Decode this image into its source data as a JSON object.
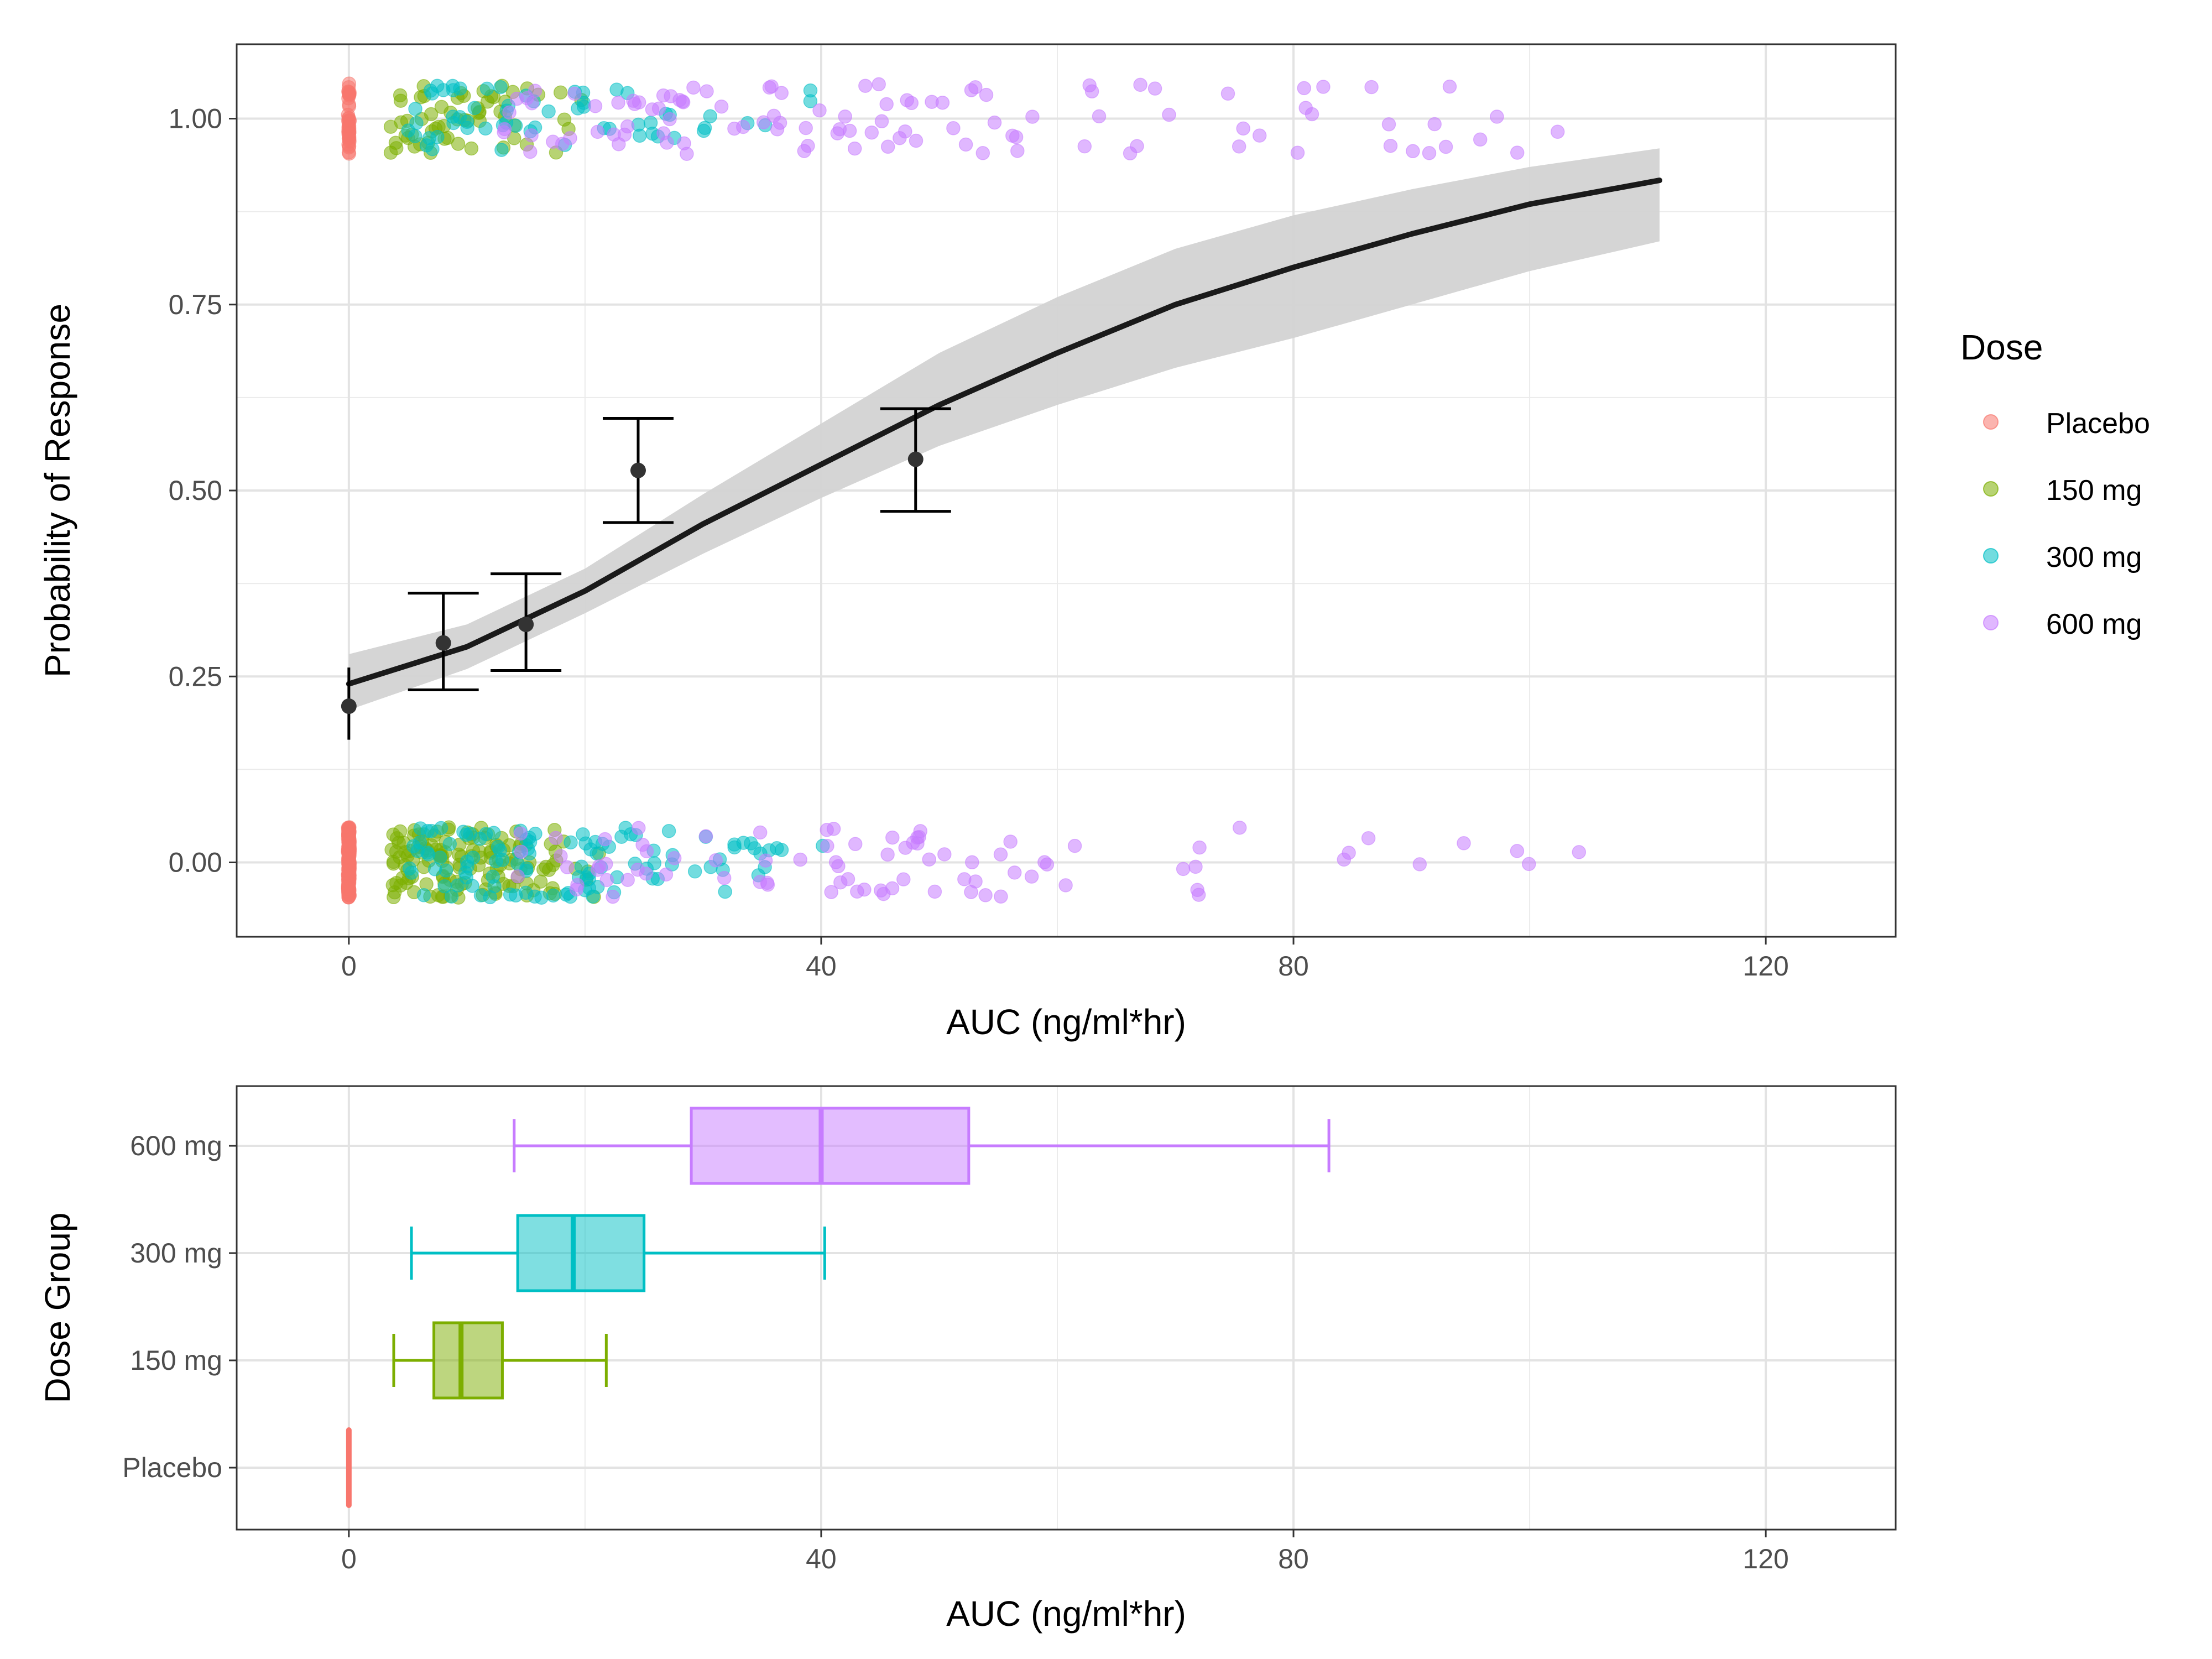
{
  "chart_data": [
    {
      "type": "scatter",
      "title": "",
      "xlabel": "AUC (ng/ml*hr)",
      "ylabel": "Probability of Response",
      "xlim": [
        -9.5,
        131
      ],
      "ylim": [
        -0.1,
        1.1
      ],
      "x_ticks": [
        0,
        40,
        80,
        120
      ],
      "x_tick_labels": [
        "0",
        "40",
        "80",
        "120"
      ],
      "y_ticks": [
        0,
        0.25,
        0.5,
        0.75,
        1
      ],
      "y_tick_labels": [
        "0.00",
        "0.25",
        "0.50",
        "0.75",
        "1.00"
      ],
      "grid": true,
      "legend": {
        "title": "Dose",
        "placement": "right",
        "entries": [
          {
            "label": "Placebo",
            "color": "#F8766D"
          },
          {
            "label": "150 mg",
            "color": "#7CAE00"
          },
          {
            "label": "300 mg",
            "color": "#00BFC4"
          },
          {
            "label": "600 mg",
            "color": "#C77CFF"
          }
        ]
      },
      "series": [
        {
          "name": "Placebo",
          "color": "#F8766D",
          "auc_range": [
            0,
            0
          ],
          "n_responders": 40,
          "n_nonresponders": 150
        },
        {
          "name": "150 mg",
          "color": "#7CAE00",
          "auc_range": [
            3.5,
            22
          ],
          "n_responders": 60,
          "n_nonresponders": 140
        },
        {
          "name": "300 mg",
          "color": "#00BFC4",
          "auc_range": [
            5,
            41
          ],
          "n_responders": 60,
          "n_nonresponders": 110
        },
        {
          "name": "600 mg",
          "color": "#C77CFF",
          "auc_range": [
            13,
            112
          ],
          "n_responders": 110,
          "n_nonresponders": 85
        }
      ],
      "logistic_fit": {
        "color": "#1a1a1a",
        "ci_color": "#d3d3d3",
        "points": [
          {
            "x": 0,
            "y": 0.24,
            "lo": 0.205,
            "hi": 0.28
          },
          {
            "x": 10,
            "y": 0.29,
            "lo": 0.26,
            "hi": 0.32
          },
          {
            "x": 20,
            "y": 0.365,
            "lo": 0.335,
            "hi": 0.395
          },
          {
            "x": 30,
            "y": 0.455,
            "lo": 0.415,
            "hi": 0.495
          },
          {
            "x": 40,
            "y": 0.535,
            "lo": 0.49,
            "hi": 0.59
          },
          {
            "x": 50,
            "y": 0.615,
            "lo": 0.56,
            "hi": 0.685
          },
          {
            "x": 60,
            "y": 0.685,
            "lo": 0.615,
            "hi": 0.76
          },
          {
            "x": 70,
            "y": 0.75,
            "lo": 0.665,
            "hi": 0.825
          },
          {
            "x": 80,
            "y": 0.8,
            "lo": 0.705,
            "hi": 0.87
          },
          {
            "x": 90,
            "y": 0.845,
            "lo": 0.75,
            "hi": 0.905
          },
          {
            "x": 100,
            "y": 0.885,
            "lo": 0.795,
            "hi": 0.935
          },
          {
            "x": 111,
            "y": 0.917,
            "lo": 0.835,
            "hi": 0.96
          }
        ]
      },
      "binned_means": [
        {
          "x": 0,
          "y": 0.21,
          "lo": 0.165,
          "hi": 0.262
        },
        {
          "x": 8,
          "y": 0.295,
          "lo": 0.232,
          "hi": 0.362
        },
        {
          "x": 15,
          "y": 0.32,
          "lo": 0.258,
          "hi": 0.388
        },
        {
          "x": 24.5,
          "y": 0.527,
          "lo": 0.457,
          "hi": 0.597
        },
        {
          "x": 48,
          "y": 0.542,
          "lo": 0.472,
          "hi": 0.61
        }
      ]
    },
    {
      "type": "box",
      "title": "",
      "xlabel": "AUC (ng/ml*hr)",
      "ylabel": "Dose Group",
      "xlim": [
        -9.5,
        131
      ],
      "x_ticks": [
        0,
        40,
        80,
        120
      ],
      "x_tick_labels": [
        "0",
        "40",
        "80",
        "120"
      ],
      "categories": [
        "Placebo",
        "150 mg",
        "300 mg",
        "600 mg"
      ],
      "grid": true,
      "boxes": [
        {
          "name": "Placebo",
          "color": "#F8766D",
          "min": 0,
          "q1": 0,
          "median": 0,
          "q3": 0,
          "max": 0
        },
        {
          "name": "150 mg",
          "color": "#7CAE00",
          "min": 3.8,
          "q1": 7.2,
          "median": 9.5,
          "q3": 13,
          "max": 21.8
        },
        {
          "name": "300 mg",
          "color": "#00BFC4",
          "min": 5.3,
          "q1": 14.3,
          "median": 19,
          "q3": 25,
          "max": 40.3
        },
        {
          "name": "600 mg",
          "color": "#C77CFF",
          "min": 14,
          "q1": 29,
          "median": 40,
          "q3": 52.5,
          "max": 83
        }
      ]
    }
  ]
}
